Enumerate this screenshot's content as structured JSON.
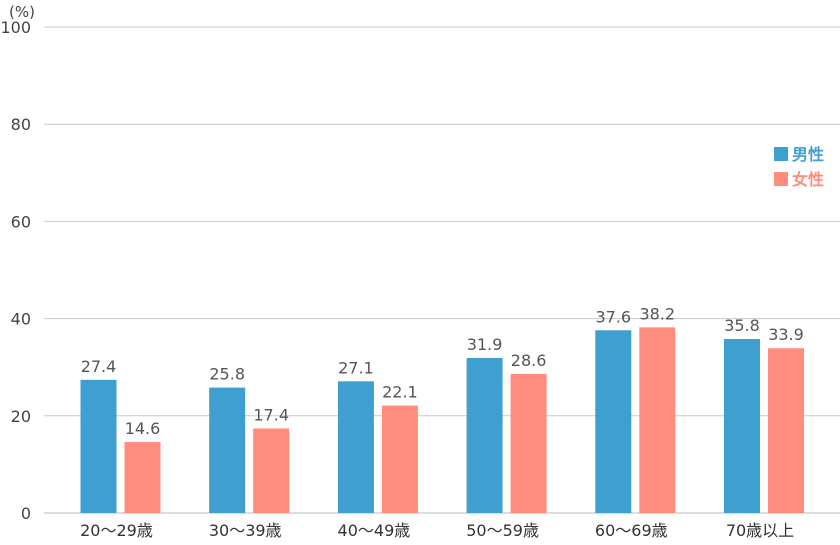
{
  "chart_data": {
    "type": "bar",
    "unit": "(%)",
    "categories": [
      "20～29歳",
      "30～39歳",
      "40～49歳",
      "50～59歳",
      "60～69歳",
      "70歳以上"
    ],
    "series": [
      {
        "name": "男性",
        "color": "#3f9fd0",
        "values": [
          27.4,
          25.8,
          27.1,
          31.9,
          37.6,
          35.8
        ]
      },
      {
        "name": "女性",
        "color": "#ff8c7c",
        "values": [
          14.6,
          17.4,
          22.1,
          28.6,
          38.2,
          33.9
        ]
      }
    ],
    "ylim": [
      0,
      100
    ],
    "yticks": [
      0,
      20,
      40,
      60,
      80,
      100
    ],
    "grid": true,
    "legend": "right",
    "title": "",
    "xlabel": "",
    "ylabel": ""
  }
}
